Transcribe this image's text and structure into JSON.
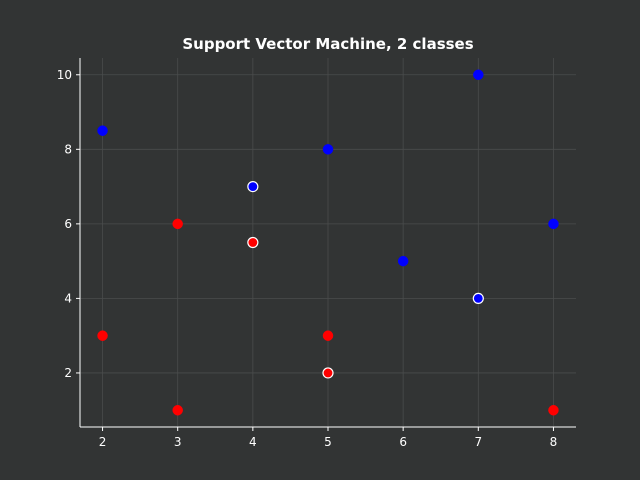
{
  "chart_data": {
    "type": "scatter",
    "title": "Support Vector Machine, 2 classes",
    "xlabel": "",
    "ylabel": "",
    "xlim": [
      1.7,
      8.3
    ],
    "ylim": [
      0.55,
      10.45
    ],
    "xticks": [
      2,
      3,
      4,
      5,
      6,
      7,
      8
    ],
    "yticks": [
      2,
      4,
      6,
      8,
      10
    ],
    "grid": true,
    "series": [
      {
        "color": "#0000ff",
        "points": [
          [
            2,
            8.5
          ],
          [
            4,
            7
          ],
          [
            5,
            8
          ],
          [
            6,
            5
          ],
          [
            7,
            10
          ],
          [
            7,
            4
          ],
          [
            8,
            6
          ]
        ],
        "support_vector": [
          false,
          true,
          false,
          false,
          false,
          true,
          false
        ]
      },
      {
        "color": "#ff0000",
        "points": [
          [
            2,
            3
          ],
          [
            3,
            6
          ],
          [
            3,
            1
          ],
          [
            4,
            5.5
          ],
          [
            5,
            3
          ],
          [
            5,
            2
          ],
          [
            8,
            1
          ]
        ],
        "support_vector": [
          false,
          false,
          false,
          true,
          false,
          true,
          false
        ]
      }
    ]
  },
  "colors": {
    "background": "#323434",
    "axis": "#ffffff",
    "grid": "#4a4c4c",
    "support_vector_edge": "#ffffff"
  }
}
